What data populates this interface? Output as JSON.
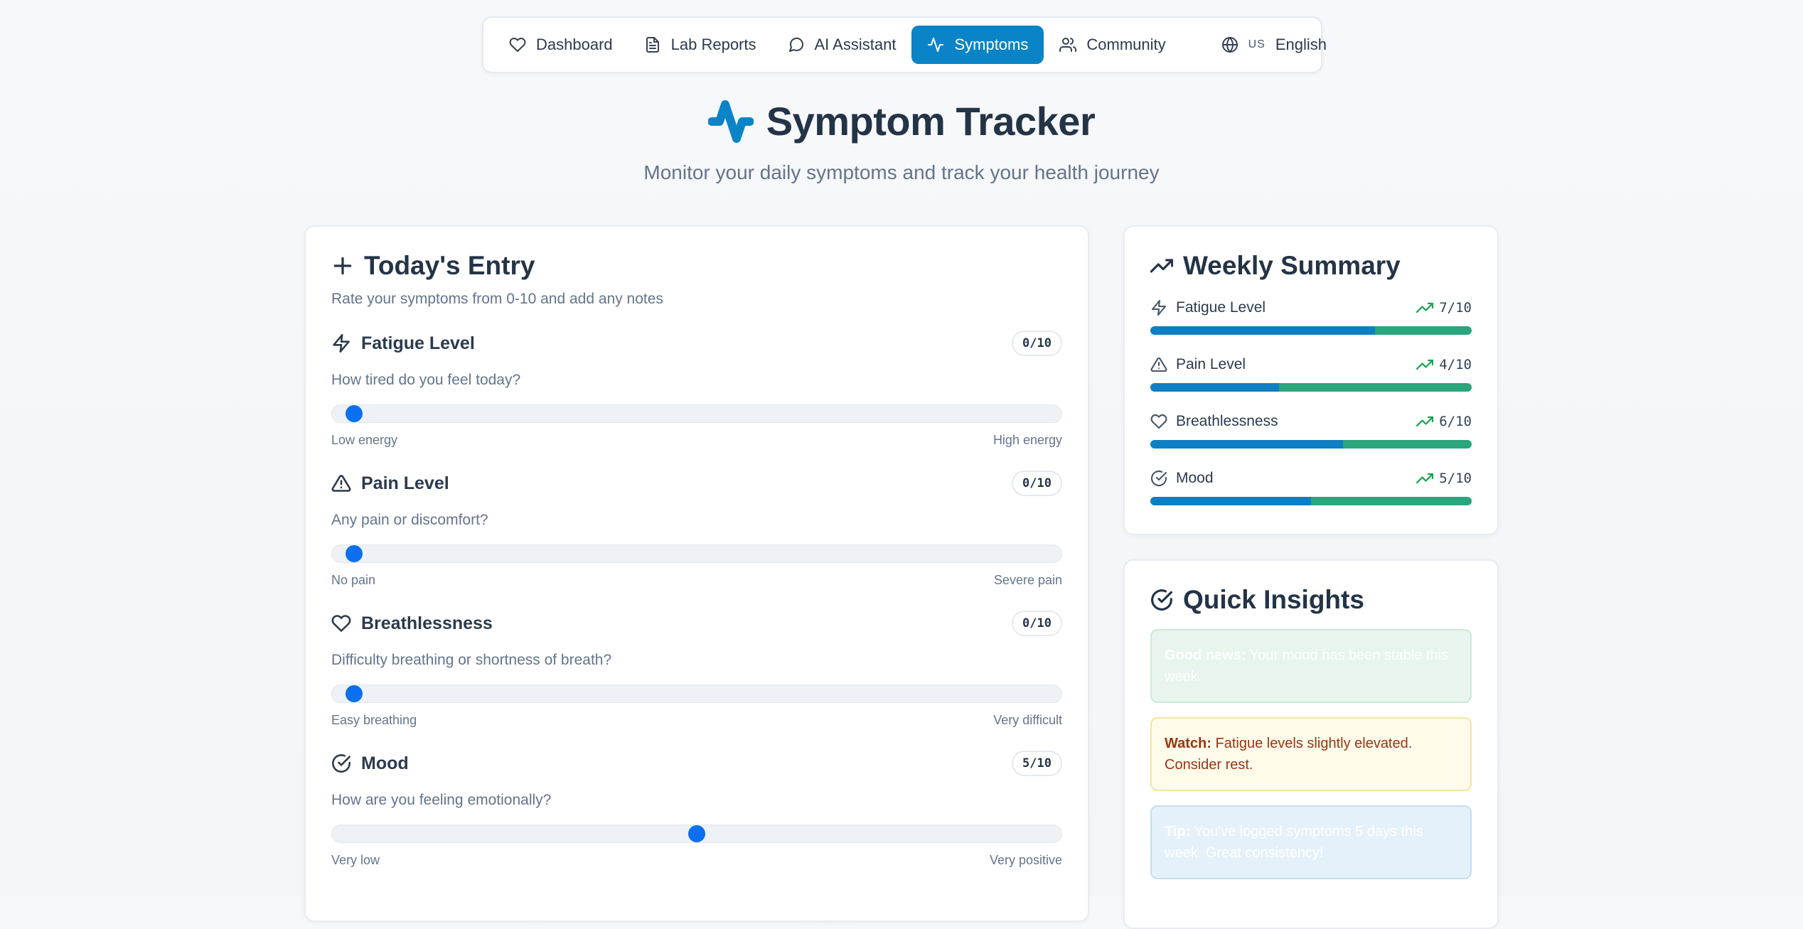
{
  "nav": {
    "items": [
      {
        "label": "Dashboard",
        "icon": "heart-icon"
      },
      {
        "label": "Lab Reports",
        "icon": "file-icon"
      },
      {
        "label": "AI Assistant",
        "icon": "chat-icon"
      },
      {
        "label": "Symptoms",
        "icon": "activity-icon",
        "active": true
      },
      {
        "label": "Community",
        "icon": "users-icon"
      }
    ],
    "language": {
      "flag": "US",
      "label": "English",
      "icon": "globe-icon"
    }
  },
  "header": {
    "title": "Symptom Tracker",
    "subtitle": "Monitor your daily symptoms and track your health journey",
    "icon": "activity-icon"
  },
  "entry": {
    "title": "Today's Entry",
    "description": "Rate your symptoms from 0-10 and add any notes",
    "symptoms": [
      {
        "name": "Fatigue Level",
        "icon": "zap-icon",
        "score": "0/10",
        "value": 0,
        "max": 10,
        "question": "How tired do you feel today?",
        "low": "Low energy",
        "high": "High energy"
      },
      {
        "name": "Pain Level",
        "icon": "alert-triangle-icon",
        "score": "0/10",
        "value": 0,
        "max": 10,
        "question": "Any pain or discomfort?",
        "low": "No pain",
        "high": "Severe pain"
      },
      {
        "name": "Breathlessness",
        "icon": "heart-icon",
        "score": "0/10",
        "value": 0,
        "max": 10,
        "question": "Difficulty breathing or shortness of breath?",
        "low": "Easy breathing",
        "high": "Very difficult"
      },
      {
        "name": "Mood",
        "icon": "check-circle-icon",
        "score": "5/10",
        "value": 5,
        "max": 10,
        "question": "How are you feeling emotionally?",
        "low": "Very low",
        "high": "Very positive"
      }
    ]
  },
  "summary": {
    "title": "Weekly Summary",
    "items": [
      {
        "name": "Fatigue Level",
        "icon": "zap-icon",
        "score": "7/10",
        "value": 7
      },
      {
        "name": "Pain Level",
        "icon": "alert-triangle-icon",
        "score": "4/10",
        "value": 4
      },
      {
        "name": "Breathlessness",
        "icon": "heart-icon",
        "score": "6/10",
        "value": 6
      },
      {
        "name": "Mood",
        "icon": "check-circle-icon",
        "score": "5/10",
        "value": 5
      }
    ]
  },
  "insights": {
    "title": "Quick Insights",
    "items": [
      {
        "type": "good",
        "lead": "Good news:",
        "text": " Your mood has been stable this week."
      },
      {
        "type": "watch",
        "lead": "Watch:",
        "text": " Fatigue levels slightly elevated. Consider rest."
      },
      {
        "type": "tip",
        "lead": "Tip:",
        "text": " You've logged symptoms 5 days this week. Great consistency!"
      }
    ]
  },
  "colors": {
    "accent": "#0a84c7",
    "slider_thumb": "#0b6ff0",
    "bar_primary": "#0f7fc4",
    "bar_secondary": "#2aa57c",
    "trend_up": "#16a34a"
  }
}
